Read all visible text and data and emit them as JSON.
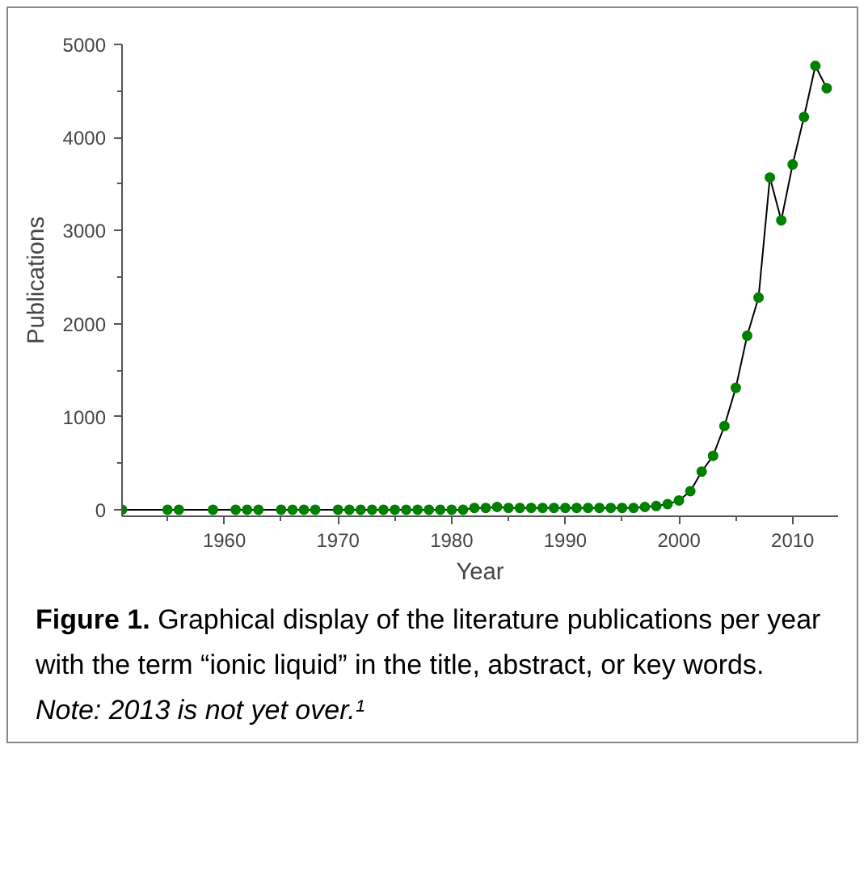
{
  "chart_data": {
    "type": "line",
    "xlabel": "Year",
    "ylabel": "Publications",
    "x": [
      1951,
      1955,
      1956,
      1959,
      1961,
      1962,
      1963,
      1965,
      1966,
      1967,
      1968,
      1970,
      1971,
      1972,
      1973,
      1974,
      1975,
      1976,
      1977,
      1978,
      1979,
      1980,
      1981,
      1982,
      1983,
      1984,
      1985,
      1986,
      1987,
      1988,
      1989,
      1990,
      1991,
      1992,
      1993,
      1994,
      1995,
      1996,
      1997,
      1998,
      1999,
      2000,
      2001,
      2002,
      2003,
      2004,
      2005,
      2006,
      2007,
      2008,
      2009,
      2010,
      2011,
      2012,
      2013
    ],
    "series": [
      {
        "color": "#008000",
        "values": [
          0,
          0,
          0,
          0,
          0,
          0,
          0,
          0,
          0,
          0,
          0,
          0,
          0,
          0,
          0,
          0,
          0,
          0,
          0,
          0,
          0,
          0,
          0,
          20,
          20,
          30,
          20,
          20,
          20,
          20,
          20,
          20,
          20,
          20,
          20,
          20,
          20,
          20,
          30,
          40,
          60,
          100,
          200,
          410,
          580,
          900,
          1310,
          1870,
          2280,
          3570,
          3110,
          3710,
          4220,
          4770,
          4530
        ]
      }
    ],
    "xlim": [
      1951,
      2014
    ],
    "xticks": [
      1960,
      1970,
      1980,
      1990,
      2000,
      2010
    ],
    "ylim": [
      -70,
      5000
    ],
    "yticks": [
      0,
      1000,
      2000,
      3000,
      4000,
      5000
    ],
    "marker": "circle",
    "line_style": "solid",
    "grid": false,
    "annotations": [
      "Figure 1. Graphical display of the literature publications per year with the term “ionic liquid” in the title, abstract, or key words.",
      "Note: 2013 is not yet over.¹"
    ]
  }
}
